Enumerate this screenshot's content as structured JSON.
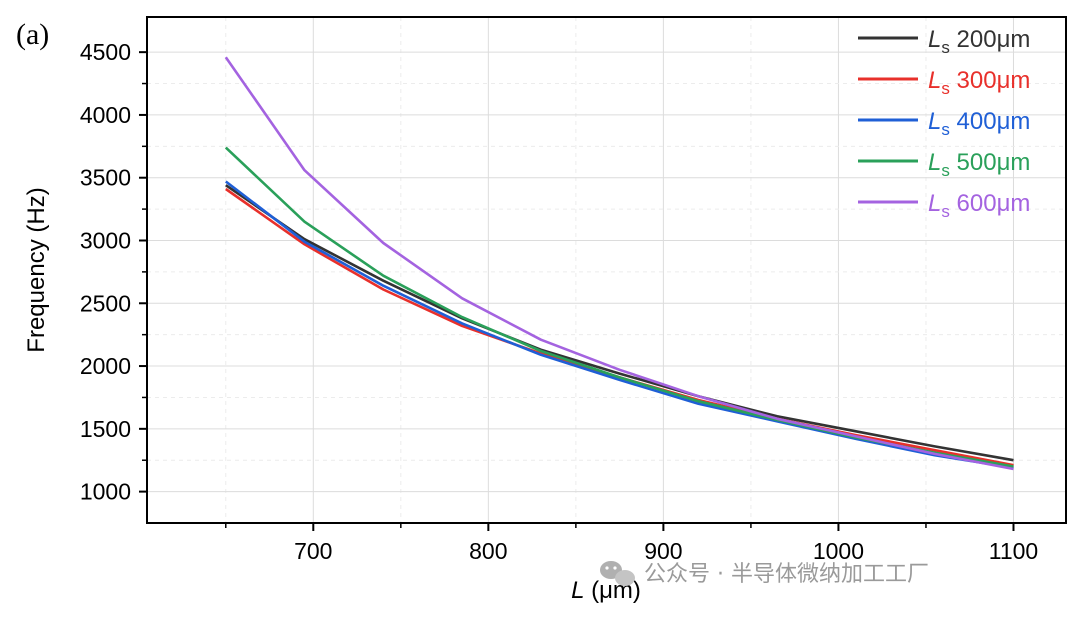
{
  "chart_data": {
    "type": "line",
    "panel_label": "(a)",
    "xlabel": {
      "symbol": "L",
      "unit": " (μm)"
    },
    "ylabel": "Frequency (Hz)",
    "xlim": [
      605,
      1130
    ],
    "ylim": [
      750,
      4780
    ],
    "x_ticks": [
      700,
      800,
      900,
      1000,
      1100
    ],
    "y_ticks": [
      1000,
      1500,
      2000,
      2500,
      3000,
      3500,
      4000,
      4500
    ],
    "x_minor_ticks": [
      650,
      750,
      850,
      950,
      1050
    ],
    "y_minor_ticks": [
      1250,
      1750,
      2250,
      2750,
      3250,
      3750,
      4250
    ],
    "grid": true,
    "legend_position": "top-right",
    "series": [
      {
        "name": "200μm",
        "symbol": "L",
        "subscript": "s",
        "color": "#333333",
        "x": [
          650,
          695,
          740,
          785,
          830,
          875,
          920,
          965,
          1010,
          1055,
          1100
        ],
        "y": [
          3440,
          3010,
          2680,
          2380,
          2130,
          1940,
          1760,
          1600,
          1480,
          1360,
          1250
        ]
      },
      {
        "name": "300μm",
        "symbol": "L",
        "subscript": "s",
        "color": "#e8302b",
        "x": [
          650,
          695,
          740,
          785,
          830,
          875,
          920,
          965,
          1010,
          1055,
          1100
        ],
        "y": [
          3410,
          2970,
          2610,
          2320,
          2100,
          1910,
          1730,
          1580,
          1450,
          1330,
          1210
        ]
      },
      {
        "name": "400μm",
        "symbol": "L",
        "subscript": "s",
        "color": "#1f5fd6",
        "x": [
          650,
          695,
          740,
          785,
          830,
          875,
          920,
          965,
          1010,
          1055,
          1100
        ],
        "y": [
          3470,
          2990,
          2640,
          2340,
          2090,
          1890,
          1700,
          1560,
          1420,
          1290,
          1190
        ]
      },
      {
        "name": "500μm",
        "symbol": "L",
        "subscript": "s",
        "color": "#2aa05a",
        "x": [
          650,
          695,
          740,
          785,
          830,
          875,
          920,
          965,
          1010,
          1055,
          1100
        ],
        "y": [
          3740,
          3150,
          2720,
          2390,
          2120,
          1910,
          1720,
          1570,
          1430,
          1310,
          1200
        ]
      },
      {
        "name": "600μm",
        "symbol": "L",
        "subscript": "s",
        "color": "#a463e0",
        "x": [
          650,
          695,
          740,
          785,
          830,
          875,
          920,
          965,
          1010,
          1055,
          1100
        ],
        "y": [
          4460,
          3560,
          2980,
          2540,
          2210,
          1970,
          1760,
          1580,
          1440,
          1300,
          1180
        ]
      }
    ]
  },
  "watermark": "公众号 · 半导体微纳加工工厂"
}
